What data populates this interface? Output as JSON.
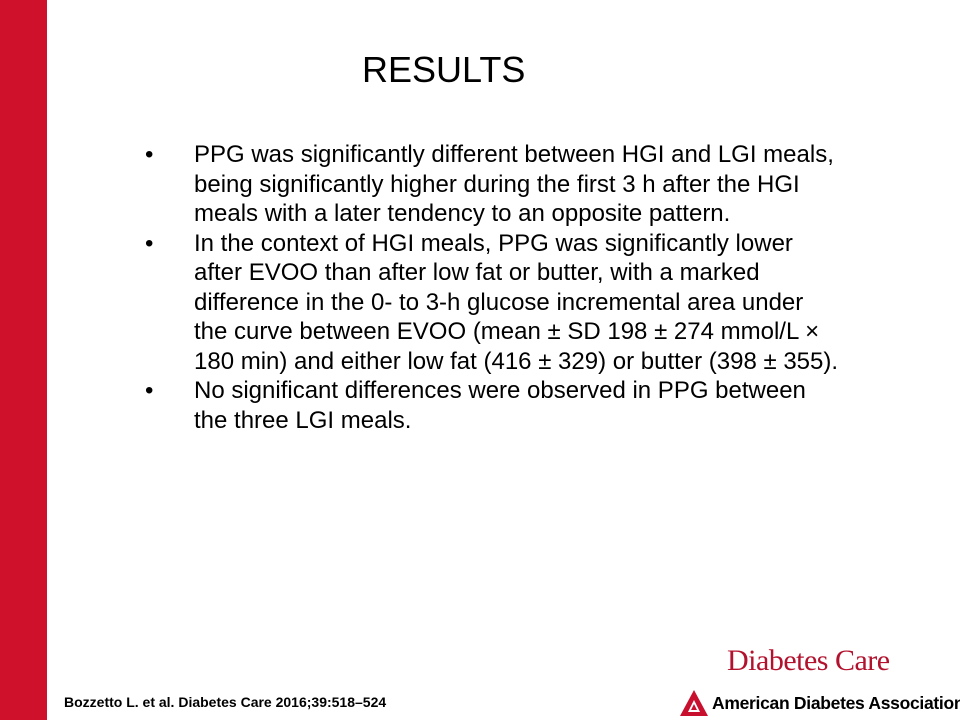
{
  "slide": {
    "title": "RESULTS",
    "bullet_symbol": "•",
    "bullets": [
      {
        "lines": [
          "PPG was significantly different between HGI and LGI meals,",
          "being significantly higher during the first 3 h after the HGI",
          "meals with a later tendency to an opposite pattern."
        ]
      },
      {
        "lines": [
          "In the context of HGI meals, PPG was significantly lower",
          "after EVOO than after low fat or butter, with a marked",
          "difference in the 0- to 3-h glucose incremental area under",
          "the curve between EVOO (mean ± SD 198 ± 274 mmol/L ×",
          "180 min) and either low fat (416 ± 329) or butter (398 ± 355)."
        ]
      },
      {
        "lines": [
          "No significant differences were observed in PPG between",
          "the three LGI meals."
        ]
      }
    ],
    "citation": "Bozzetto L. et al. Diabetes Care 2016;39:518–524"
  },
  "branding": {
    "journal_name": "Diabetes Care",
    "association_name": "American Diabetes Association",
    "association_mark": "®",
    "accent_color": "#d0112b",
    "icon": "ada-triangle-icon"
  }
}
